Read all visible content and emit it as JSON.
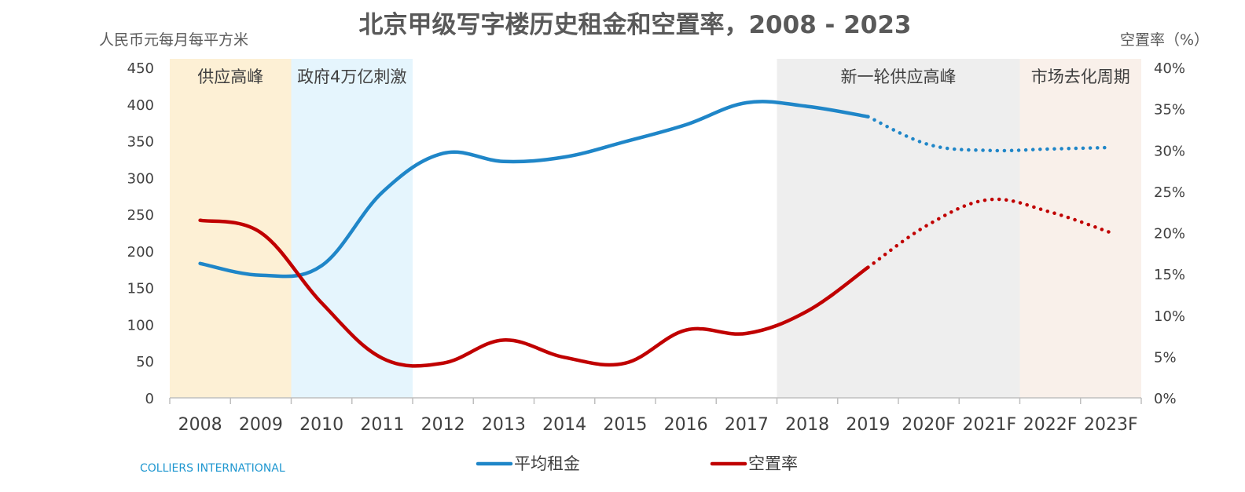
{
  "chart_data": {
    "type": "line",
    "title": "北京甲级写字楼历史租金和空置率，2008 - 2023",
    "ylabel_left": "人民币元每月每平方米",
    "ylabel_right": "空置率（%）",
    "categories": [
      "2008",
      "2009",
      "2010",
      "2011",
      "2012",
      "2013",
      "2014",
      "2015",
      "2016",
      "2017",
      "2018",
      "2019",
      "2020F",
      "2021F",
      "2022F",
      "2023F"
    ],
    "y_left": {
      "min": 0,
      "max": 450,
      "step": 50,
      "ticks": [
        "0",
        "50",
        "100",
        "150",
        "200",
        "250",
        "300",
        "350",
        "400",
        "450"
      ]
    },
    "y_right": {
      "min": 0,
      "max": 40,
      "step": 5,
      "ticks": [
        "0%",
        "5%",
        "10%",
        "15%",
        "20%",
        "25%",
        "30%",
        "35%",
        "40%"
      ]
    },
    "series": [
      {
        "name": "平均租金",
        "axis": "left",
        "color": "#1f86c8",
        "values": [
          183,
          167,
          180,
          280,
          333,
          322,
          328,
          349,
          372,
          402,
          397,
          383,
          345,
          337,
          339,
          341
        ],
        "forecast_from_index": 11
      },
      {
        "name": "空置率",
        "axis": "right",
        "color": "#c00000",
        "values": [
          21.5,
          20.0,
          11.5,
          4.8,
          4.2,
          7.0,
          4.9,
          4.2,
          8.2,
          7.8,
          10.5,
          15.8,
          21.0,
          24.0,
          22.5,
          20.0
        ],
        "forecast_from_index": 11
      }
    ],
    "bands": [
      {
        "label": "供应高峰",
        "from": 2008,
        "to": 2009,
        "color": "#fdf0d5"
      },
      {
        "label": "政府4万亿刺激",
        "from": 2010,
        "to": 2011,
        "color": "#e5f5fd"
      },
      {
        "label": "新一轮供应高峰",
        "from": 2018,
        "to": 2021,
        "color": "#eeeeee"
      },
      {
        "label": "市场去化周期",
        "from": 2022,
        "to": 2023,
        "color": "#f9f0ea"
      }
    ],
    "grid": false,
    "legend_position": "bottom"
  },
  "source_note": "COLLIERS INTERNATIONAL"
}
